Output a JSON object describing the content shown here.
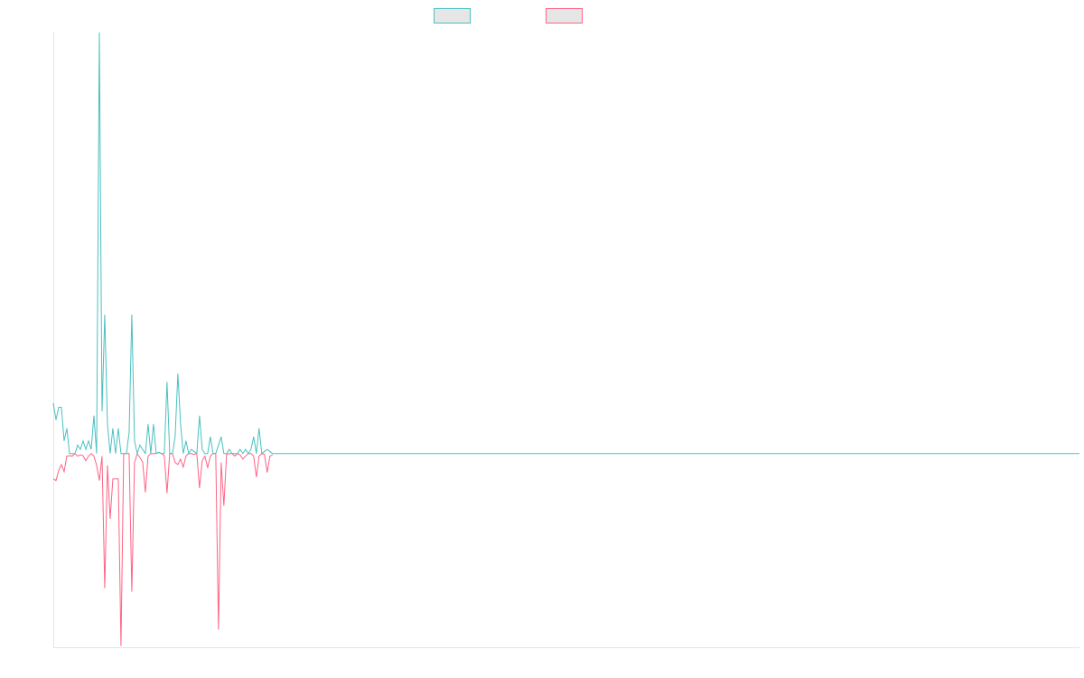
{
  "chart_data": {
    "type": "line",
    "x": [
      0,
      1,
      2,
      3,
      4,
      5,
      6,
      7,
      8,
      9,
      10,
      11,
      12,
      13,
      14,
      15,
      16,
      17,
      18,
      19,
      20,
      21,
      22,
      23,
      24,
      25,
      26,
      27,
      28,
      29,
      30,
      31,
      32,
      33,
      34,
      35,
      36,
      37,
      38,
      39,
      40,
      41,
      42,
      43,
      44,
      45,
      46,
      47,
      48,
      49,
      50,
      51,
      52,
      53,
      54,
      55,
      56,
      57,
      58,
      59,
      60,
      61,
      62,
      63,
      64,
      65,
      66,
      67,
      68,
      69,
      70,
      71,
      72,
      73,
      74,
      75,
      76,
      77,
      78,
      79,
      80,
      81,
      379
    ],
    "series": [
      {
        "color": "#4bc0c0",
        "values": [
          12,
          8,
          11,
          11,
          3,
          6,
          0,
          0,
          0,
          2,
          1,
          3,
          1,
          3,
          1,
          9,
          0,
          100,
          10,
          33,
          7,
          0,
          6,
          0,
          6,
          0,
          0,
          0,
          5,
          33,
          3,
          0,
          2,
          1,
          0,
          7,
          0,
          7,
          0,
          0.3,
          0,
          0,
          17,
          0,
          0,
          4,
          19,
          7,
          0,
          3,
          0,
          1,
          0.5,
          0,
          9,
          1,
          0,
          0,
          4,
          0,
          0,
          2,
          4,
          0,
          0,
          1,
          0,
          0,
          0,
          1,
          0,
          1,
          0,
          1,
          4,
          0,
          6,
          0,
          0.5,
          1,
          0.5,
          0,
          0
        ]
      },
      {
        "color": "#ff6384",
        "values": [
          -6,
          -6.4,
          -4,
          -2.6,
          -4.3,
          -0.6,
          -0.5,
          -0.6,
          0,
          -0.6,
          -0.3,
          -0.5,
          -1.7,
          -0.6,
          0,
          -0.6,
          -2.8,
          -6.4,
          -0.6,
          -32,
          -2.8,
          -15.5,
          -6,
          -6,
          -6,
          -45.7,
          0,
          0,
          0,
          -32.8,
          -2.1,
          0,
          -1,
          -2,
          -9.2,
          -0.6,
          0,
          0,
          0,
          0.3,
          0,
          -0.5,
          -9.4,
          0,
          0,
          -2.1,
          -2.6,
          -1.3,
          -3.2,
          -0.6,
          0,
          0,
          -0.2,
          0,
          -8.2,
          -1.7,
          -0.6,
          -3.4,
          -0.6,
          0,
          0,
          -41.8,
          -2.1,
          -12.4,
          -0.2,
          0,
          0,
          -0.6,
          0,
          -0.3,
          -1.3,
          -0.6,
          0,
          0,
          -0.6,
          -5.6,
          -0.6,
          0,
          -0.2,
          -4.5,
          -0.6,
          -0.3,
          null
        ]
      }
    ],
    "xlim": [
      0,
      379
    ],
    "ylim": [
      -46,
      100
    ]
  }
}
